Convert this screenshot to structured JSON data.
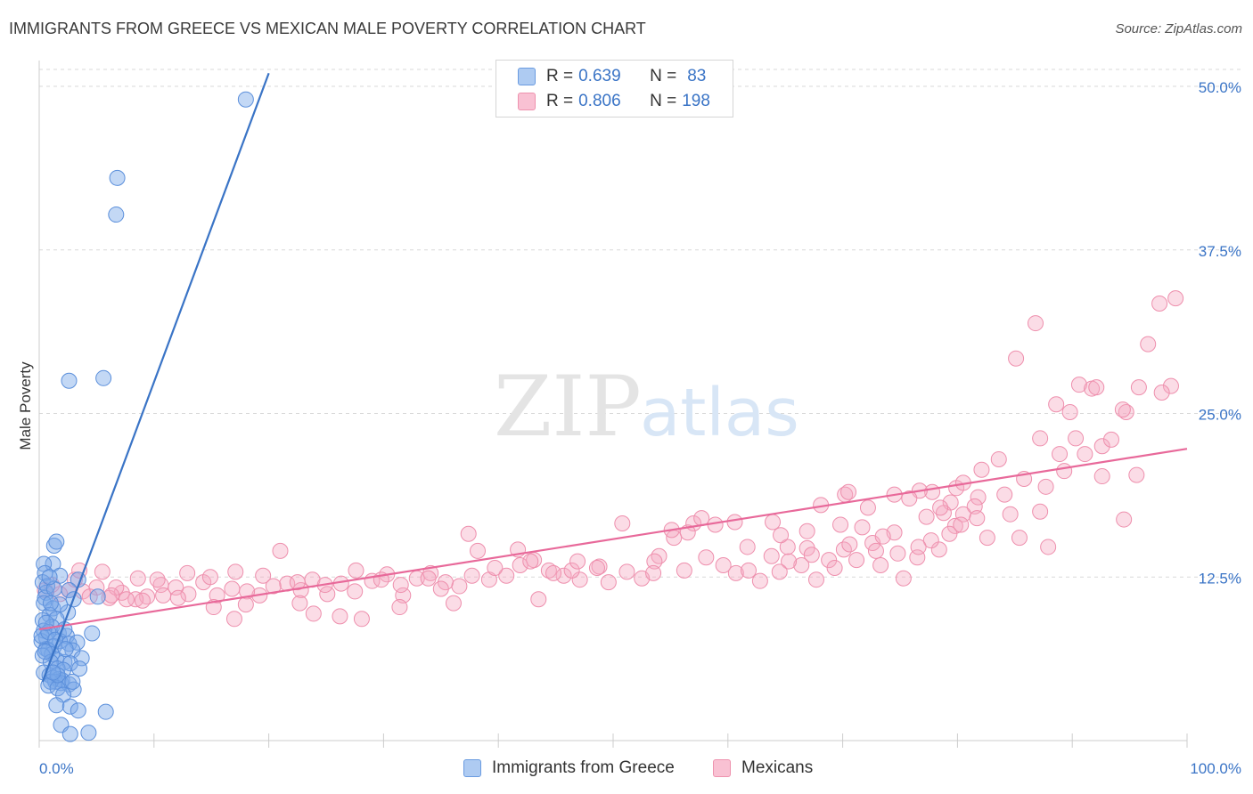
{
  "header": {
    "title": "IMMIGRANTS FROM GREECE VS MEXICAN MALE POVERTY CORRELATION CHART",
    "source": "Source: ZipAtlas.com"
  },
  "watermark": {
    "zip": "ZIP",
    "atlas": "atlas"
  },
  "legend": {
    "r_label": "R =",
    "n_label": "N =",
    "rows": [
      {
        "r": "0.639",
        "n": "83",
        "fill": "#aecbf2",
        "stroke": "#6a9be0"
      },
      {
        "r": "0.806",
        "n": "198",
        "fill": "#f9c1d3",
        "stroke": "#ee92ae"
      }
    ]
  },
  "bottom_legend": [
    "Immigrants from Greece",
    "Mexicans"
  ],
  "colors": {
    "blue": "#3a74c6",
    "blue_fill": "rgba(122,168,232,0.45)",
    "blue_stroke": "#5b8fdb",
    "pink": "#e8699a",
    "pink_fill": "rgba(245,168,192,0.4)",
    "pink_stroke": "#ee8fad",
    "axis_text": "#3a74c6",
    "grid": "#d9d9d9"
  },
  "chart_data": {
    "type": "scatter",
    "xlabel": "",
    "ylabel": "Male Poverty",
    "xlim": [
      0,
      100
    ],
    "ylim": [
      0,
      50
    ],
    "x_tick_labels": [
      "0.0%",
      "100.0%"
    ],
    "y_ticks": [
      12.5,
      25.0,
      37.5,
      50.0
    ],
    "y_tick_labels": [
      "12.5%",
      "25.0%",
      "37.5%",
      "50.0%"
    ],
    "grid": "horizontal dashed",
    "series": [
      {
        "name": "Immigrants from Greece",
        "trend": {
          "x0": 0.3,
          "y0": 4.5,
          "x1": 20,
          "y1": 51
        },
        "points": [
          [
            18,
            49
          ],
          [
            6.8,
            43
          ],
          [
            6.7,
            40.2
          ],
          [
            2.6,
            27.5
          ],
          [
            5.6,
            27.7
          ],
          [
            1.3,
            14.9
          ],
          [
            1.5,
            15.2
          ],
          [
            1.2,
            13.5
          ],
          [
            0.4,
            13.5
          ],
          [
            0.5,
            12.8
          ],
          [
            0.3,
            12.1
          ],
          [
            0.6,
            11.3
          ],
          [
            1.8,
            12.6
          ],
          [
            3.4,
            12.3
          ],
          [
            0.5,
            10.9
          ],
          [
            2.6,
            11.5
          ],
          [
            5.1,
            11.0
          ],
          [
            0.4,
            10.5
          ],
          [
            1.2,
            10.1
          ],
          [
            2.5,
            9.8
          ],
          [
            0.9,
            9.6
          ],
          [
            0.3,
            9.2
          ],
          [
            1.5,
            9.3
          ],
          [
            1.1,
            8.7
          ],
          [
            0.4,
            8.4
          ],
          [
            1.7,
            8.2
          ],
          [
            4.6,
            8.2
          ],
          [
            2.4,
            8.0
          ],
          [
            0.6,
            7.9
          ],
          [
            0.2,
            7.6
          ],
          [
            1.8,
            7.6
          ],
          [
            2.6,
            7.4
          ],
          [
            3.3,
            7.5
          ],
          [
            1.3,
            7.2
          ],
          [
            0.6,
            7.0
          ],
          [
            0.8,
            6.9
          ],
          [
            2.9,
            6.9
          ],
          [
            1.1,
            6.6
          ],
          [
            0.3,
            6.5
          ],
          [
            3.7,
            6.3
          ],
          [
            1.5,
            6.2
          ],
          [
            2.2,
            6.0
          ],
          [
            1.0,
            6.0
          ],
          [
            2.7,
            5.9
          ],
          [
            1.6,
            5.5
          ],
          [
            2.1,
            5.4
          ],
          [
            0.4,
            5.2
          ],
          [
            0.9,
            5.0
          ],
          [
            1.2,
            4.8
          ],
          [
            1.7,
            4.7
          ],
          [
            2.0,
            4.6
          ],
          [
            1.4,
            4.5
          ],
          [
            1.9,
            4.4
          ],
          [
            1.0,
            4.5
          ],
          [
            2.6,
            4.3
          ],
          [
            0.8,
            4.2
          ],
          [
            1.6,
            4.0
          ],
          [
            3.0,
            3.9
          ],
          [
            2.1,
            3.5
          ],
          [
            1.5,
            2.7
          ],
          [
            2.7,
            2.6
          ],
          [
            3.4,
            2.3
          ],
          [
            5.8,
            2.2
          ],
          [
            1.9,
            1.2
          ],
          [
            4.3,
            0.6
          ],
          [
            2.7,
            0.5
          ],
          [
            0.7,
            11.8
          ],
          [
            1.3,
            11.6
          ],
          [
            0.2,
            8.0
          ],
          [
            0.8,
            8.3
          ],
          [
            1.4,
            7.7
          ],
          [
            2.2,
            8.5
          ],
          [
            1.6,
            5.0
          ],
          [
            2.9,
            4.5
          ],
          [
            0.5,
            6.8
          ],
          [
            1.8,
            10.4
          ],
          [
            3.0,
            10.8
          ],
          [
            0.6,
            9.0
          ],
          [
            1.0,
            10.5
          ],
          [
            2.3,
            7.0
          ],
          [
            1.2,
            5.2
          ],
          [
            3.5,
            5.5
          ],
          [
            0.9,
            12.5
          ]
        ]
      },
      {
        "name": "Mexicans",
        "trend": {
          "x0": 0,
          "y0": 8.5,
          "x1": 100,
          "y1": 22.3
        },
        "points": [
          [
            99,
            33.8
          ],
          [
            97.6,
            33.4
          ],
          [
            96.6,
            30.3
          ],
          [
            86.8,
            31.9
          ],
          [
            85.1,
            29.2
          ],
          [
            98.6,
            27.1
          ],
          [
            97.8,
            26.6
          ],
          [
            95.8,
            27.0
          ],
          [
            94.7,
            25.1
          ],
          [
            94.4,
            25.3
          ],
          [
            90.6,
            27.2
          ],
          [
            91.7,
            26.9
          ],
          [
            88.6,
            25.7
          ],
          [
            89.8,
            25.1
          ],
          [
            92.1,
            27.0
          ],
          [
            88.9,
            21.9
          ],
          [
            91.1,
            21.9
          ],
          [
            92.6,
            22.5
          ],
          [
            93.4,
            23.0
          ],
          [
            90.3,
            23.1
          ],
          [
            87.2,
            23.1
          ],
          [
            83.6,
            21.5
          ],
          [
            82.1,
            20.7
          ],
          [
            85.8,
            20.0
          ],
          [
            89.3,
            20.6
          ],
          [
            87.7,
            19.4
          ],
          [
            84.1,
            18.8
          ],
          [
            79.9,
            19.3
          ],
          [
            84.6,
            17.3
          ],
          [
            81.8,
            18.6
          ],
          [
            80.5,
            19.7
          ],
          [
            81.5,
            17.9
          ],
          [
            79.4,
            18.2
          ],
          [
            77.8,
            19.0
          ],
          [
            76.7,
            19.1
          ],
          [
            75.8,
            18.5
          ],
          [
            74.5,
            18.8
          ],
          [
            72.2,
            17.8
          ],
          [
            70.2,
            18.8
          ],
          [
            68.1,
            18.0
          ],
          [
            69.8,
            16.5
          ],
          [
            71.7,
            16.3
          ],
          [
            72.6,
            15.1
          ],
          [
            70.1,
            14.6
          ],
          [
            77.3,
            17.1
          ],
          [
            78.8,
            17.4
          ],
          [
            79.8,
            16.4
          ],
          [
            80.5,
            17.3
          ],
          [
            81.7,
            17.0
          ],
          [
            79.3,
            15.8
          ],
          [
            78.4,
            14.6
          ],
          [
            77.7,
            15.3
          ],
          [
            76.5,
            14.0
          ],
          [
            74.5,
            15.9
          ],
          [
            73.5,
            15.6
          ],
          [
            72.9,
            14.5
          ],
          [
            71.2,
            13.8
          ],
          [
            68.8,
            13.8
          ],
          [
            67.7,
            12.3
          ],
          [
            66.4,
            13.4
          ],
          [
            66.9,
            14.7
          ],
          [
            65.3,
            13.7
          ],
          [
            64.5,
            12.9
          ],
          [
            63.8,
            14.1
          ],
          [
            62.8,
            12.2
          ],
          [
            61.7,
            14.8
          ],
          [
            60.6,
            16.7
          ],
          [
            58.9,
            16.5
          ],
          [
            57.0,
            16.6
          ],
          [
            56.5,
            15.9
          ],
          [
            55.3,
            15.5
          ],
          [
            54.0,
            14.1
          ],
          [
            52.5,
            12.4
          ],
          [
            51.2,
            12.9
          ],
          [
            49.6,
            12.1
          ],
          [
            48.8,
            13.3
          ],
          [
            47.1,
            12.3
          ],
          [
            45.7,
            12.6
          ],
          [
            44.4,
            13.0
          ],
          [
            43.1,
            13.8
          ],
          [
            41.9,
            13.4
          ],
          [
            40.7,
            12.6
          ],
          [
            39.2,
            12.3
          ],
          [
            37.7,
            12.6
          ],
          [
            36.6,
            11.8
          ],
          [
            35.4,
            12.1
          ],
          [
            34.1,
            12.8
          ],
          [
            32.9,
            12.4
          ],
          [
            31.7,
            11.1
          ],
          [
            30.3,
            12.7
          ],
          [
            29.0,
            12.2
          ],
          [
            27.5,
            11.4
          ],
          [
            26.3,
            12.0
          ],
          [
            25.1,
            11.2
          ],
          [
            23.8,
            12.3
          ],
          [
            22.8,
            11.5
          ],
          [
            21.6,
            12.0
          ],
          [
            20.4,
            11.8
          ],
          [
            19.2,
            11.1
          ],
          [
            18.1,
            11.4
          ],
          [
            16.8,
            11.6
          ],
          [
            15.5,
            11.1
          ],
          [
            14.3,
            12.1
          ],
          [
            13.0,
            11.2
          ],
          [
            11.9,
            11.7
          ],
          [
            10.6,
            11.9
          ],
          [
            9.4,
            11.0
          ],
          [
            8.4,
            10.8
          ],
          [
            7.2,
            11.3
          ],
          [
            6.1,
            10.9
          ],
          [
            5.0,
            11.7
          ],
          [
            3.8,
            11.4
          ],
          [
            2.6,
            11.5
          ],
          [
            1.8,
            11.2
          ],
          [
            1.1,
            11.9
          ],
          [
            0.5,
            11.5
          ],
          [
            3.1,
            12.3
          ],
          [
            3.5,
            13.0
          ],
          [
            5.5,
            12.9
          ],
          [
            6.7,
            11.7
          ],
          [
            8.6,
            12.4
          ],
          [
            10.3,
            12.3
          ],
          [
            12.9,
            12.8
          ],
          [
            14.9,
            12.5
          ],
          [
            17.1,
            12.9
          ],
          [
            19.5,
            12.6
          ],
          [
            21.0,
            14.5
          ],
          [
            22.5,
            12.1
          ],
          [
            24.9,
            11.9
          ],
          [
            27.6,
            13.0
          ],
          [
            29.8,
            12.3
          ],
          [
            31.5,
            11.9
          ],
          [
            33.9,
            12.4
          ],
          [
            35.0,
            11.6
          ],
          [
            37.4,
            15.8
          ],
          [
            38.2,
            14.5
          ],
          [
            39.7,
            13.2
          ],
          [
            41.7,
            14.6
          ],
          [
            42.8,
            13.7
          ],
          [
            44.8,
            12.8
          ],
          [
            46.4,
            13.0
          ],
          [
            46.9,
            13.7
          ],
          [
            48.6,
            13.2
          ],
          [
            50.8,
            16.6
          ],
          [
            53.6,
            13.7
          ],
          [
            56.2,
            13.0
          ],
          [
            58.1,
            14.0
          ],
          [
            60.7,
            12.8
          ],
          [
            63.9,
            16.7
          ],
          [
            65.2,
            14.8
          ],
          [
            67.3,
            14.2
          ],
          [
            69.3,
            13.2
          ],
          [
            70.6,
            15.0
          ],
          [
            73.3,
            13.4
          ],
          [
            75.3,
            12.4
          ],
          [
            76.6,
            14.8
          ],
          [
            78.5,
            17.8
          ],
          [
            80.3,
            16.5
          ],
          [
            82.6,
            15.5
          ],
          [
            85.4,
            15.5
          ],
          [
            87.9,
            14.8
          ],
          [
            92.6,
            20.2
          ],
          [
            95.6,
            20.3
          ],
          [
            17.0,
            9.3
          ],
          [
            15.2,
            10.2
          ],
          [
            12.1,
            10.9
          ],
          [
            10.8,
            11.1
          ],
          [
            9.0,
            10.7
          ],
          [
            7.6,
            10.8
          ],
          [
            6.3,
            11.1
          ],
          [
            4.4,
            11.0
          ],
          [
            18.0,
            10.4
          ],
          [
            22.7,
            10.5
          ],
          [
            23.9,
            9.7
          ],
          [
            26.2,
            9.5
          ],
          [
            28.1,
            9.3
          ],
          [
            31.4,
            10.2
          ],
          [
            36.1,
            10.5
          ],
          [
            43.5,
            10.8
          ],
          [
            53.5,
            12.8
          ],
          [
            55.1,
            16.1
          ],
          [
            57.7,
            17.0
          ],
          [
            59.6,
            13.4
          ],
          [
            61.8,
            13.0
          ],
          [
            64.6,
            15.7
          ],
          [
            66.9,
            16.0
          ],
          [
            70.5,
            19.0
          ],
          [
            74.8,
            14.3
          ],
          [
            87.2,
            17.5
          ],
          [
            94.5,
            16.9
          ]
        ]
      }
    ]
  }
}
